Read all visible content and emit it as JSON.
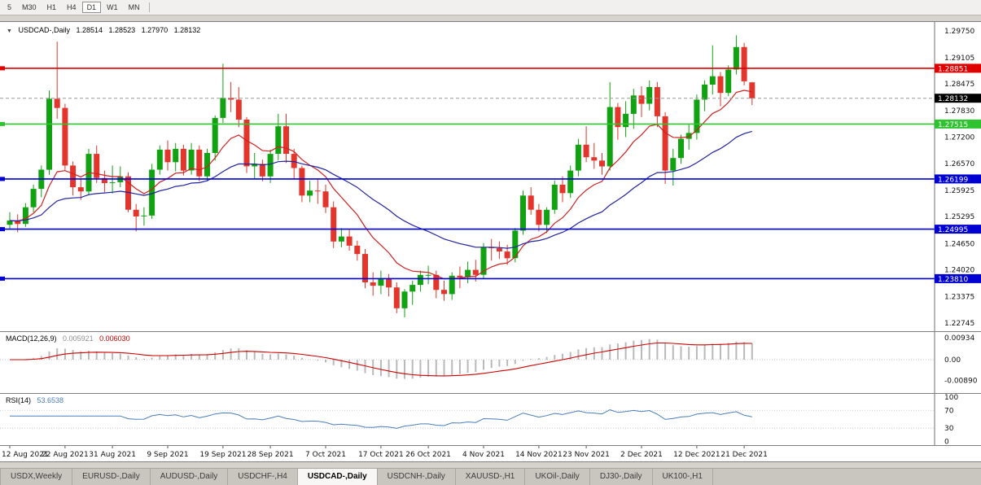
{
  "toolbar": {
    "timeframes": [
      "5",
      "M30",
      "H1",
      "H4",
      "D1",
      "W1",
      "MN"
    ],
    "active": "D1"
  },
  "chart": {
    "one_click_icon": "▼",
    "symbol_period": "USDCAD-,Daily",
    "ohlc": {
      "open": "1.28514",
      "high": "1.28523",
      "low": "1.27970",
      "close": "1.28132"
    }
  },
  "chart_data": {
    "type": "candlestick",
    "symbol": "USDCAD-",
    "timeframe": "Daily",
    "ylim": [
      1.2255,
      1.2996
    ],
    "y_ticks": [
      "1.29750",
      "1.29105",
      "1.28475",
      "1.27830",
      "1.27200",
      "1.26570",
      "1.25925",
      "1.25295",
      "1.24650",
      "1.24020",
      "1.23375",
      "1.22745"
    ],
    "x_ticks": [
      {
        "i": 0,
        "label": "12 Aug 2021"
      },
      {
        "i": 7,
        "label": "22 Aug 2021"
      },
      {
        "i": 13,
        "label": "31 Aug 2021"
      },
      {
        "i": 20,
        "label": "9 Sep 2021"
      },
      {
        "i": 27,
        "label": "19 Sep 2021"
      },
      {
        "i": 33,
        "label": "28 Sep 2021"
      },
      {
        "i": 40,
        "label": "7 Oct 2021"
      },
      {
        "i": 47,
        "label": "17 Oct 2021"
      },
      {
        "i": 53,
        "label": "26 Oct 2021"
      },
      {
        "i": 60,
        "label": "4 Nov 2021"
      },
      {
        "i": 67,
        "label": "14 Nov 2021"
      },
      {
        "i": 73,
        "label": "23 Nov 2021"
      },
      {
        "i": 80,
        "label": "2 Dec 2021"
      },
      {
        "i": 87,
        "label": "12 Dec 2021"
      },
      {
        "i": 93,
        "label": "21 Dec 2021"
      }
    ],
    "colors": {
      "up": "#11a211",
      "down": "#e3352b",
      "ma_fast": "#cf2020",
      "ma_slow": "#2222a0",
      "histogram": "#b9b9b9",
      "signal": "#cc0000",
      "rsi": "#4a7ebb"
    },
    "h_lines": [
      {
        "price": 1.28851,
        "color": "#e00000",
        "badge": "1.28851"
      },
      {
        "price": 1.27515,
        "color": "#2fc42f",
        "badge": "1.27515"
      },
      {
        "price": 1.26199,
        "color": "#0000d2",
        "badge": "1.26199"
      },
      {
        "price": 1.24995,
        "color": "#0000d2",
        "badge": "1.24995"
      },
      {
        "price": 1.2381,
        "color": "#0000d2",
        "badge": "1.23810"
      }
    ],
    "bid": {
      "price": 1.28132,
      "badge": "1.28132",
      "color": "#000000"
    },
    "ma": [
      {
        "period": 10,
        "color": "#cf2020"
      },
      {
        "period": 30,
        "color": "#2222a0"
      }
    ],
    "indicators": {
      "macd": {
        "label": "MACD(12,26,9)",
        "value_main": "0.005921",
        "value_signal": "0.006030",
        "axis": [
          "0.00934",
          "0.00",
          "-0.00890"
        ],
        "params": [
          12,
          26,
          9
        ]
      },
      "rsi": {
        "label": "RSI(14)",
        "value": "53.6538",
        "axis": [
          "100",
          "70",
          "30",
          "0"
        ],
        "period": 14,
        "levels": [
          70,
          30
        ]
      }
    },
    "candles": [
      [
        1.251,
        1.254,
        1.25,
        1.252
      ],
      [
        1.252,
        1.2535,
        1.2492,
        1.2512
      ],
      [
        1.2512,
        1.2562,
        1.2505,
        1.2552
      ],
      [
        1.2552,
        1.2606,
        1.254,
        1.2596
      ],
      [
        1.2596,
        1.2652,
        1.2576,
        1.2642
      ],
      [
        1.2642,
        1.2832,
        1.263,
        1.2812
      ],
      [
        1.2812,
        1.2949,
        1.2764,
        1.279
      ],
      [
        1.279,
        1.28,
        1.264,
        1.2652
      ],
      [
        1.2652,
        1.2662,
        1.258,
        1.26
      ],
      [
        1.26,
        1.2622,
        1.257,
        1.259
      ],
      [
        1.259,
        1.2692,
        1.258,
        1.268
      ],
      [
        1.268,
        1.27,
        1.261,
        1.2622
      ],
      [
        1.2622,
        1.264,
        1.2588,
        1.261
      ],
      [
        1.261,
        1.2652,
        1.2585,
        1.2612
      ],
      [
        1.2612,
        1.265,
        1.26,
        1.2626
      ],
      [
        1.2626,
        1.2636,
        1.254,
        1.2546
      ],
      [
        1.2546,
        1.256,
        1.2494,
        1.253
      ],
      [
        1.253,
        1.2552,
        1.2508,
        1.2532
      ],
      [
        1.2532,
        1.2656,
        1.2524,
        1.2642
      ],
      [
        1.2642,
        1.27,
        1.263,
        1.269
      ],
      [
        1.269,
        1.2712,
        1.264,
        1.266
      ],
      [
        1.266,
        1.2706,
        1.2638,
        1.2692
      ],
      [
        1.2692,
        1.2702,
        1.2628,
        1.264
      ],
      [
        1.264,
        1.2706,
        1.263,
        1.269
      ],
      [
        1.269,
        1.27,
        1.2614,
        1.2626
      ],
      [
        1.2626,
        1.2692,
        1.2614,
        1.2682
      ],
      [
        1.2682,
        1.2772,
        1.2664,
        1.2766
      ],
      [
        1.2766,
        1.2896,
        1.2754,
        1.2814
      ],
      [
        1.2814,
        1.2852,
        1.278,
        1.281
      ],
      [
        1.281,
        1.284,
        1.2744,
        1.2762
      ],
      [
        1.2762,
        1.2768,
        1.2634,
        1.265
      ],
      [
        1.265,
        1.2682,
        1.262,
        1.2656
      ],
      [
        1.2656,
        1.2666,
        1.2614,
        1.2626
      ],
      [
        1.2626,
        1.269,
        1.261,
        1.268
      ],
      [
        1.268,
        1.2776,
        1.2664,
        1.2746
      ],
      [
        1.2746,
        1.2776,
        1.2658,
        1.268
      ],
      [
        1.268,
        1.2692,
        1.2618,
        1.2646
      ],
      [
        1.2646,
        1.2652,
        1.2564,
        1.258
      ],
      [
        1.258,
        1.2616,
        1.2564,
        1.2592
      ],
      [
        1.2592,
        1.262,
        1.256,
        1.259
      ],
      [
        1.259,
        1.2606,
        1.2538,
        1.2552
      ],
      [
        1.2552,
        1.2566,
        1.2454,
        1.247
      ],
      [
        1.247,
        1.2502,
        1.2456,
        1.2482
      ],
      [
        1.2482,
        1.25,
        1.2448,
        1.246
      ],
      [
        1.246,
        1.2472,
        1.2424,
        1.244
      ],
      [
        1.244,
        1.2452,
        1.2358,
        1.2372
      ],
      [
        1.2372,
        1.2396,
        1.234,
        1.2364
      ],
      [
        1.2364,
        1.24,
        1.2344,
        1.2382
      ],
      [
        1.2382,
        1.2392,
        1.2338,
        1.236
      ],
      [
        1.236,
        1.2372,
        1.2298,
        1.231
      ],
      [
        1.231,
        1.2356,
        1.2288,
        1.235
      ],
      [
        1.235,
        1.2376,
        1.2318,
        1.2366
      ],
      [
        1.2366,
        1.24,
        1.235,
        1.239
      ],
      [
        1.239,
        1.2412,
        1.2368,
        1.239
      ],
      [
        1.239,
        1.24,
        1.2334,
        1.2354
      ],
      [
        1.2354,
        1.2376,
        1.2328,
        1.2344
      ],
      [
        1.2344,
        1.2396,
        1.233,
        1.2388
      ],
      [
        1.2388,
        1.241,
        1.2358,
        1.2384
      ],
      [
        1.2384,
        1.2422,
        1.237,
        1.2402
      ],
      [
        1.2402,
        1.2426,
        1.2374,
        1.239
      ],
      [
        1.239,
        1.2466,
        1.238,
        1.2456
      ],
      [
        1.2456,
        1.2476,
        1.2424,
        1.2454
      ],
      [
        1.2454,
        1.247,
        1.2428,
        1.2446
      ],
      [
        1.2446,
        1.2462,
        1.2414,
        1.243
      ],
      [
        1.243,
        1.2502,
        1.242,
        1.2496
      ],
      [
        1.2496,
        1.2592,
        1.2486,
        1.258
      ],
      [
        1.258,
        1.26,
        1.2534,
        1.2546
      ],
      [
        1.2546,
        1.256,
        1.2494,
        1.251
      ],
      [
        1.251,
        1.2552,
        1.249,
        1.2546
      ],
      [
        1.2546,
        1.2616,
        1.2536,
        1.2606
      ],
      [
        1.2606,
        1.2626,
        1.2564,
        1.2586
      ],
      [
        1.2586,
        1.2652,
        1.2574,
        1.264
      ],
      [
        1.264,
        1.2716,
        1.2626,
        1.2702
      ],
      [
        1.2702,
        1.2746,
        1.266,
        1.2672
      ],
      [
        1.2672,
        1.2706,
        1.2644,
        1.2664
      ],
      [
        1.2664,
        1.2682,
        1.263,
        1.265
      ],
      [
        1.265,
        1.2852,
        1.264,
        1.2792
      ],
      [
        1.2792,
        1.2802,
        1.2714,
        1.2744
      ],
      [
        1.2744,
        1.2806,
        1.272,
        1.2776
      ],
      [
        1.2776,
        1.2836,
        1.274,
        1.282
      ],
      [
        1.282,
        1.2842,
        1.2768,
        1.28
      ],
      [
        1.28,
        1.2856,
        1.2784,
        1.284
      ],
      [
        1.284,
        1.2852,
        1.2744,
        1.277
      ],
      [
        1.277,
        1.278,
        1.2608,
        1.264
      ],
      [
        1.264,
        1.2692,
        1.2604,
        1.267
      ],
      [
        1.267,
        1.2726,
        1.2656,
        1.2716
      ],
      [
        1.2716,
        1.275,
        1.269,
        1.273
      ],
      [
        1.273,
        1.2822,
        1.2714,
        1.281
      ],
      [
        1.281,
        1.2856,
        1.2782,
        1.2846
      ],
      [
        1.2846,
        1.294,
        1.2822,
        1.2866
      ],
      [
        1.2866,
        1.2876,
        1.2794,
        1.2826
      ],
      [
        1.2826,
        1.2892,
        1.2818,
        1.2882
      ],
      [
        1.2882,
        1.2964,
        1.287,
        1.2936
      ],
      [
        1.2936,
        1.2946,
        1.2844,
        1.2854
      ],
      [
        1.28514,
        1.28523,
        1.2797,
        1.28132
      ]
    ]
  },
  "tabs": {
    "items": [
      "USDX,Weekly",
      "EURUSD-,Daily",
      "AUDUSD-,Daily",
      "USDCHF-,H4",
      "USDCAD-,Daily",
      "USDCNH-,Daily",
      "XAUUSD-,H1",
      "UKOil-,Daily",
      "DJ30-,Daily",
      "UK100-,H1"
    ],
    "active": "USDCAD-,Daily"
  }
}
